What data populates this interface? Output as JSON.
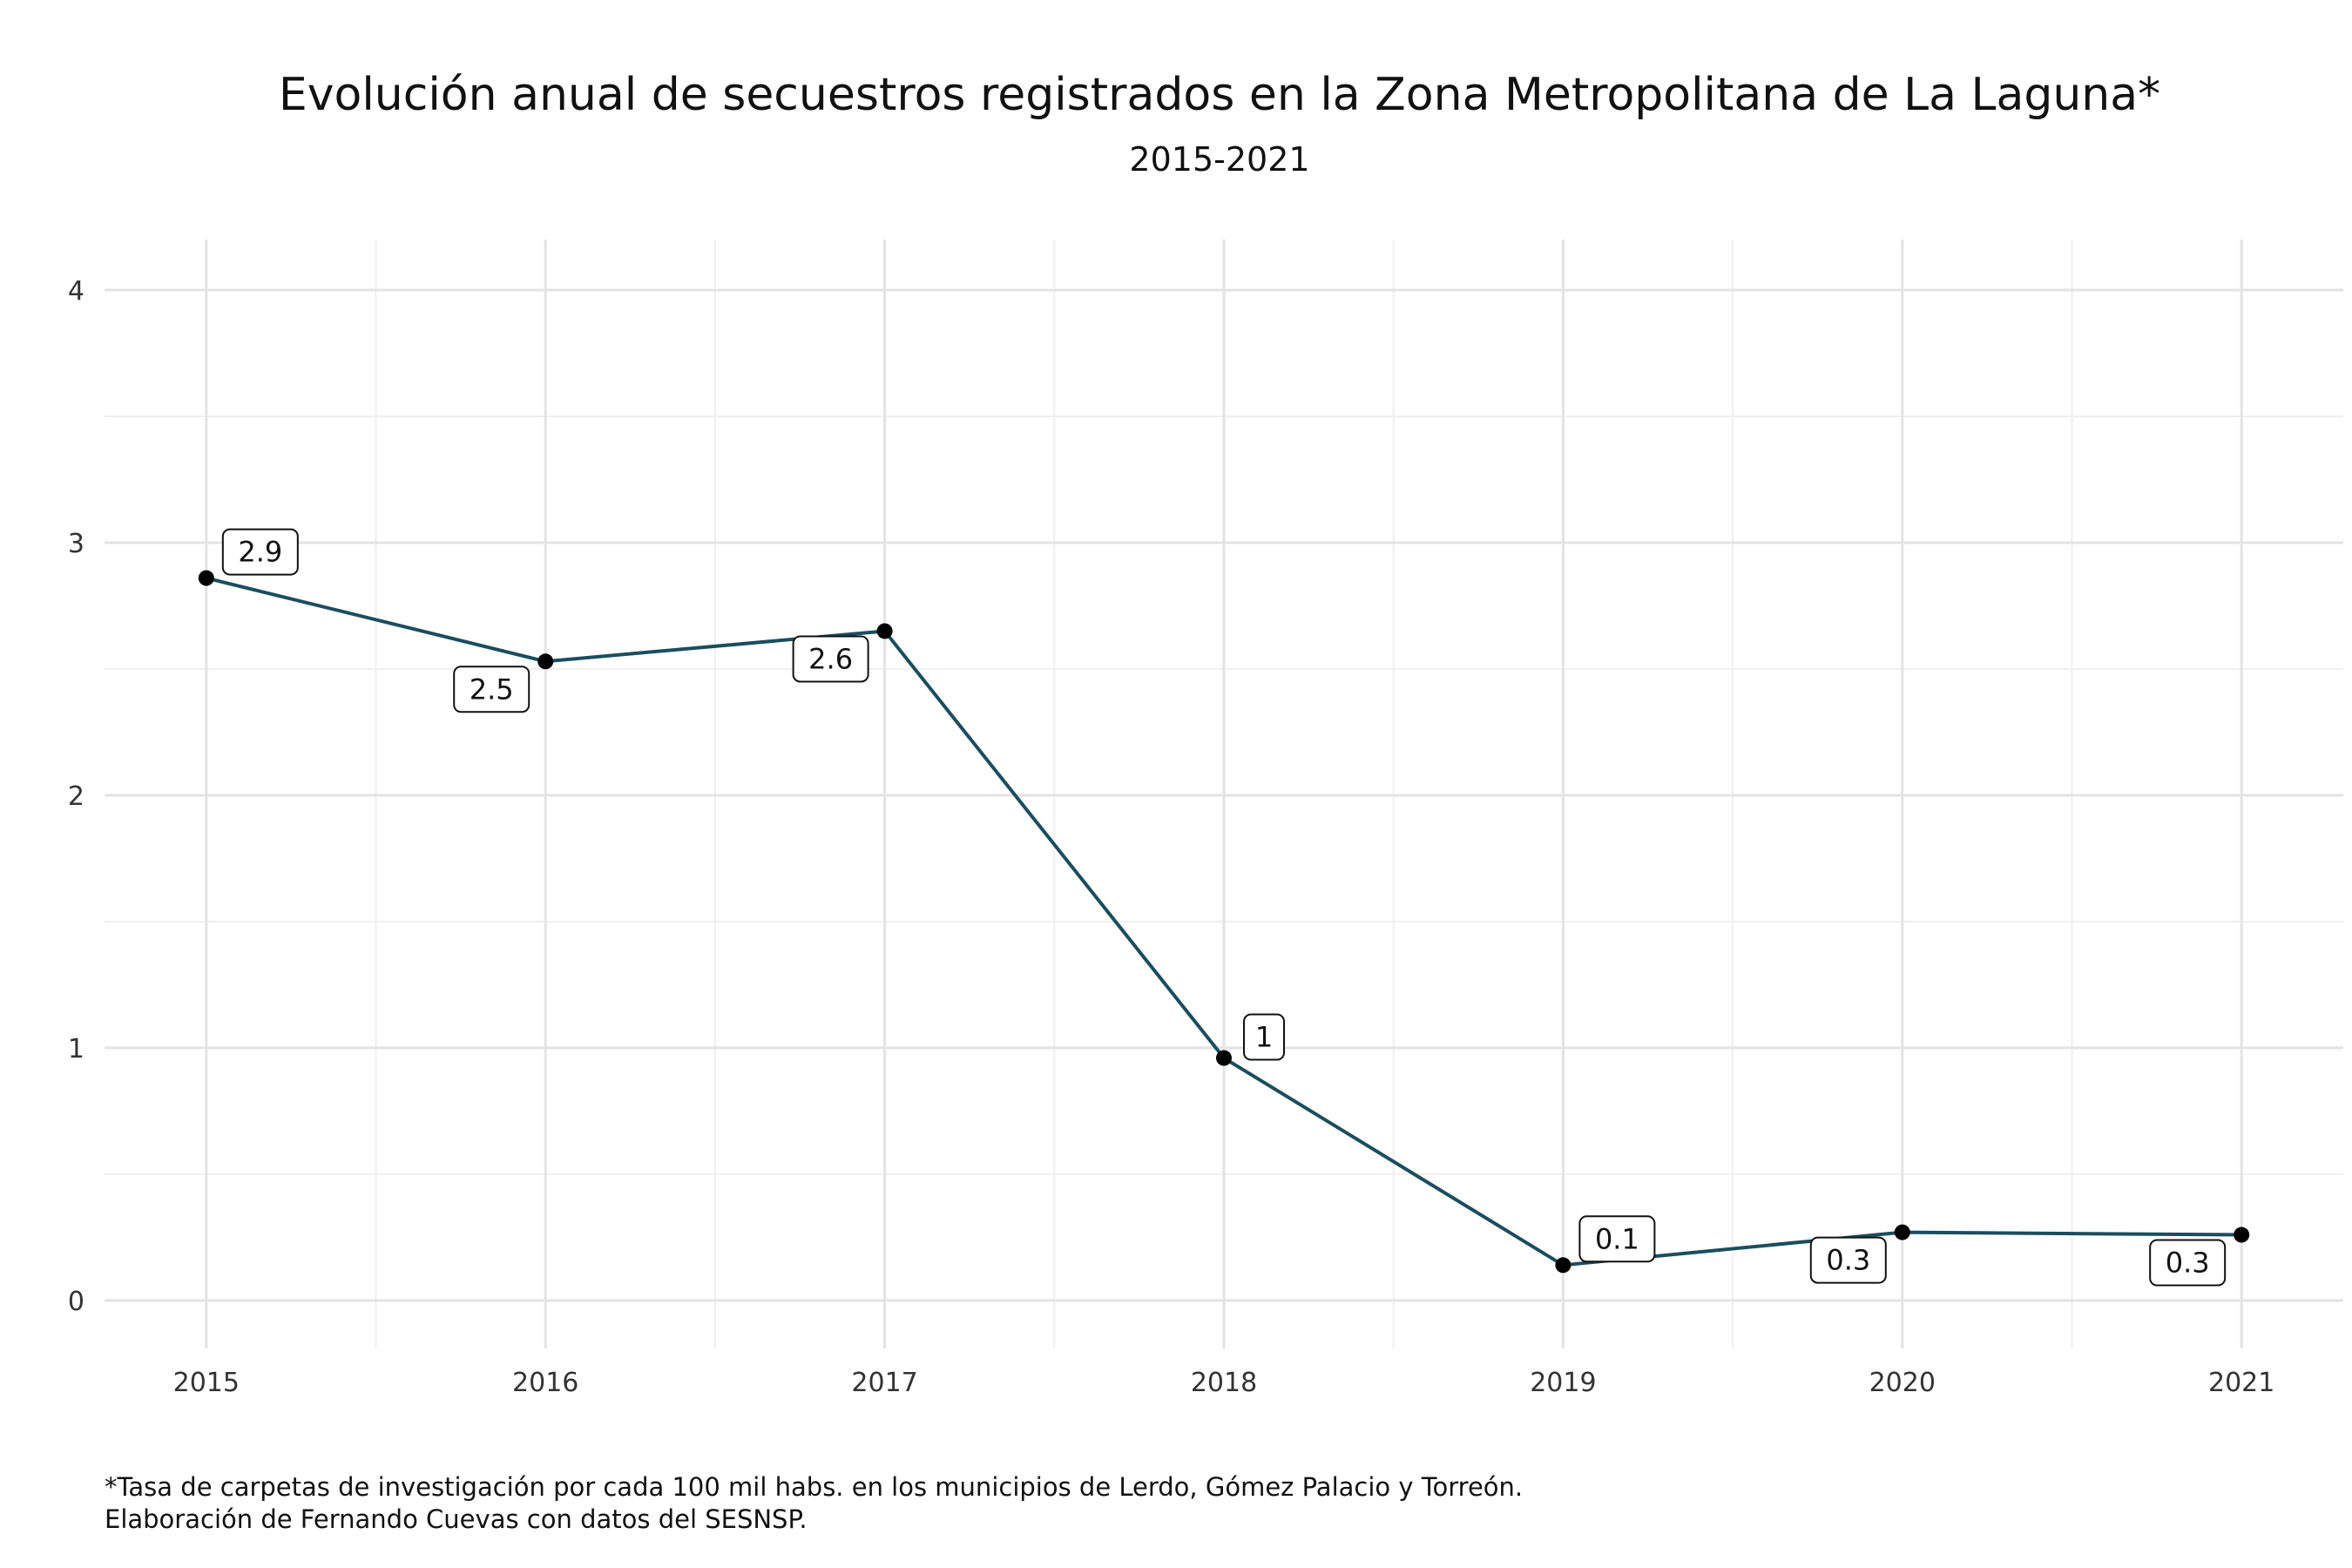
{
  "chart_data": {
    "type": "line",
    "title": "Evolución anual de secuestros registrados en la Zona Metropolitana de La Laguna*",
    "subtitle": "2015-2021",
    "xlabel": "",
    "ylabel": "",
    "x": [
      2015,
      2016,
      2017,
      2018,
      2019,
      2020,
      2021
    ],
    "x_tick_labels": [
      "2015",
      "2016",
      "2017",
      "2018",
      "2019",
      "2020",
      "2021"
    ],
    "y_ticks": [
      0,
      1,
      2,
      3,
      4
    ],
    "ylim": [
      -0.19,
      4.2
    ],
    "xlim": [
      2014.7,
      2021.3
    ],
    "grid": true,
    "legend": "none",
    "series": [
      {
        "values": [
          2.86,
          2.53,
          2.65,
          0.96,
          0.14,
          0.27,
          0.26
        ],
        "labels": [
          "2.9",
          "2.5",
          "2.6",
          "1",
          "0.1",
          "0.3",
          "0.3"
        ],
        "color": "#1b4d5e"
      }
    ],
    "caption_lines": [
      "*Tasa de carpetas de investigación por cada 100 mil habs. en los municipios de Lerdo, Gómez Palacio y Torreón.",
      "Elaboración de Fernando Cuevas con datos del SESNSP."
    ]
  },
  "colors": {
    "line": "#1b4d5e",
    "point": "#000000",
    "grid_major": "#e3e3e3",
    "grid_minor": "#efefef",
    "background": "#ffffff"
  }
}
